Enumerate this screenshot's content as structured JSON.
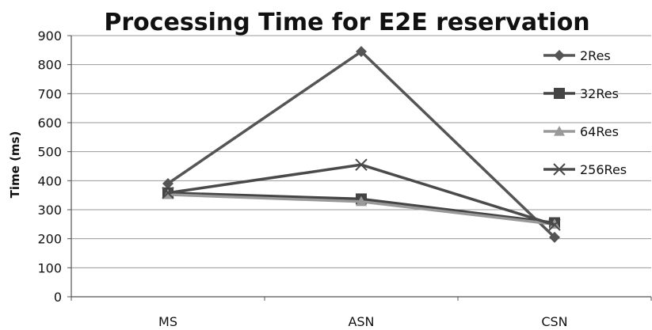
{
  "chart_data": {
    "type": "line",
    "title": "Processing Time for E2E reservation",
    "xlabel": "",
    "ylabel": "Time (ms)",
    "categories": [
      "MS",
      "ASN",
      "CSN"
    ],
    "ylim": [
      0,
      900
    ],
    "yticks": [
      0,
      100,
      200,
      300,
      400,
      500,
      600,
      700,
      800,
      900
    ],
    "grid": "horizontal",
    "legend_position": "right",
    "series": [
      {
        "name": "2Res",
        "values": [
          390,
          845,
          205
        ],
        "color": "#555555",
        "marker": "diamond"
      },
      {
        "name": "32Res",
        "values": [
          358,
          337,
          255
        ],
        "color": "#444444",
        "marker": "square"
      },
      {
        "name": "64Res",
        "values": [
          352,
          328,
          250
        ],
        "color": "#999999",
        "marker": "triangle"
      },
      {
        "name": "256Res",
        "values": [
          358,
          455,
          248
        ],
        "color": "#4a4a4a",
        "marker": "x"
      }
    ]
  }
}
